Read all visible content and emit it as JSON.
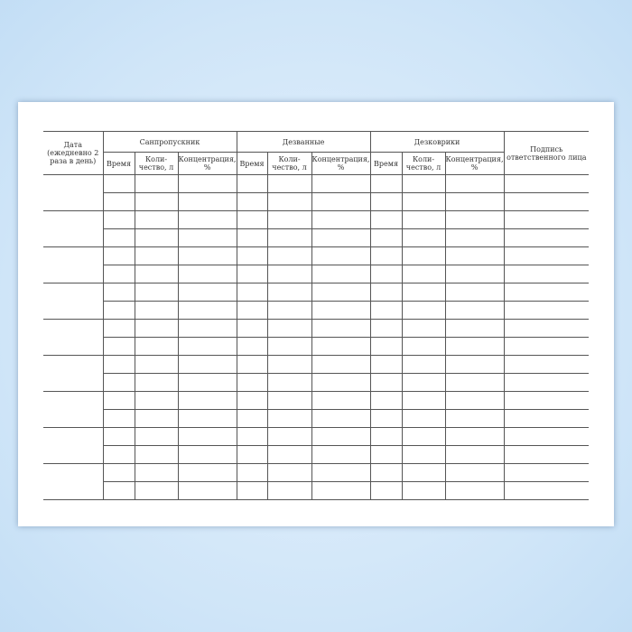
{
  "form": {
    "date_header": "Дата (ежедневно 2 раза в день)",
    "groups": [
      "Санпропускник",
      "Дезванные",
      "Дезковрики"
    ],
    "sub_columns": [
      "Время",
      "Коли-чество, л",
      "Концентрация, %"
    ],
    "signature_header": "Подпись ответственного лица",
    "date_groups": 9,
    "rows_per_date": 2
  }
}
